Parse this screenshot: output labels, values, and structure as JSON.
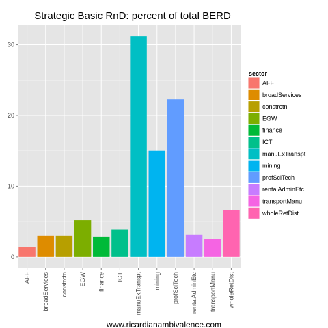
{
  "chart_data": {
    "type": "bar",
    "title": "Strategic Basic RnD: percent of total BERD",
    "xlabel": "",
    "ylabel": "",
    "categories": [
      "AFF",
      "broadServices",
      "constrctn",
      "EGW",
      "finance",
      "ICT",
      "manuExTranspt",
      "mining",
      "profSciTech",
      "rentalAdminEtc",
      "transportManu",
      "wholeRetDist"
    ],
    "values": [
      1.4,
      3.0,
      3.0,
      5.2,
      2.8,
      3.9,
      31.2,
      15.0,
      22.3,
      3.1,
      2.5,
      6.6
    ],
    "colors": [
      "#F8766D",
      "#DE8C00",
      "#B79F00",
      "#7CAE00",
      "#00BA38",
      "#00C08B",
      "#00BFC4",
      "#00B4F0",
      "#619CFF",
      "#C77CFF",
      "#F564E3",
      "#FF64B0"
    ],
    "ylim": [
      -1.56,
      32.76
    ],
    "yticks": [
      0,
      10,
      20,
      30
    ],
    "grid": true,
    "panel_background": "#E5E5E5",
    "legend": {
      "title": "sector",
      "position": "right"
    },
    "caption": "www.ricardianambivalence.com"
  }
}
